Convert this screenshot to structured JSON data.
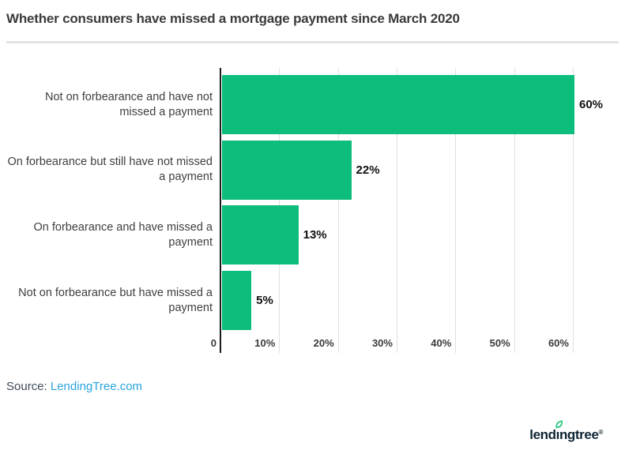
{
  "title": "Whether consumers have missed a mortgage payment since March 2020",
  "source": {
    "prefix": "Source: ",
    "link_text": "LendingTree.com"
  },
  "footer_logo": {
    "pre": "lend",
    "dotless_i": "ı",
    "post": "ngtree",
    "registered_mark": "®"
  },
  "colors": {
    "bar_green": "#0cbd7b",
    "leaf_green": "#1ec77c",
    "logo_navy": "#0e2433",
    "link_blue": "#29a4dc",
    "grid_gray": "#e0e0e0",
    "axis_black": "#1b1b1b",
    "text_dark": "#3b3b3b"
  },
  "chart_data": {
    "type": "bar",
    "orientation": "horizontal",
    "title": "Whether consumers have missed a mortgage payment since March 2020",
    "categories": [
      "Not on forbearance and have not missed a payment",
      "On forbearance but still have not missed a payment",
      "On forbearance and have missed a payment",
      "Not on forbearance but have missed a payment"
    ],
    "values": [
      60,
      22,
      13,
      5
    ],
    "value_labels": [
      "60%",
      "22%",
      "13%",
      "5%"
    ],
    "x_ticks": [
      {
        "value": 0,
        "label": "0"
      },
      {
        "value": 10,
        "label": "10%"
      },
      {
        "value": 20,
        "label": "20%"
      },
      {
        "value": 30,
        "label": "30%"
      },
      {
        "value": 40,
        "label": "40%"
      },
      {
        "value": 50,
        "label": "50%"
      },
      {
        "value": 60,
        "label": "60%"
      }
    ],
    "xlim": [
      0,
      60
    ],
    "grid": true,
    "legend": false,
    "bar_color": "#0cbd7b"
  }
}
